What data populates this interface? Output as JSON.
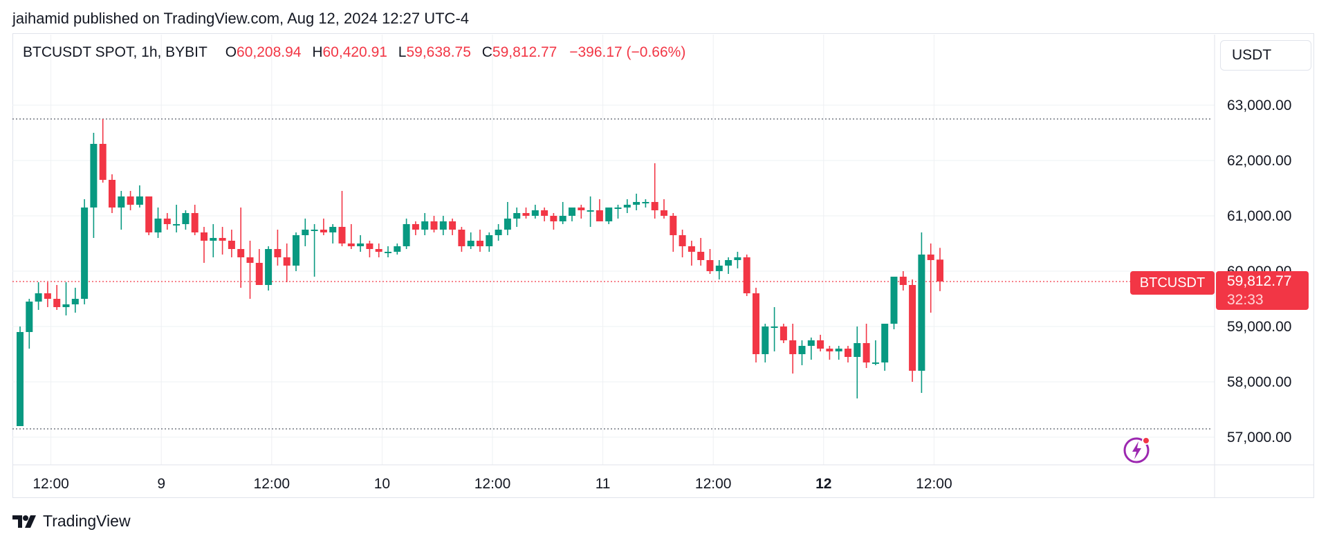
{
  "attribution": "jaihamid published on TradingView.com, Aug 12, 2024 12:27 UTC-4",
  "legend": {
    "symbol": "BTCUSDT SPOT, 1h, BYBIT",
    "open_label": "O",
    "open": "60,208.94",
    "high_label": "H",
    "high": "60,420.91",
    "low_label": "L",
    "low": "59,638.75",
    "close_label": "C",
    "close": "59,812.77",
    "change": "−396.17 (−0.66%)"
  },
  "currency_button": "USDT",
  "last_price": {
    "symbol": "BTCUSDT",
    "price": "59,812.77",
    "countdown": "32:33"
  },
  "brand": "TradingView",
  "icons": {
    "logo": "tradingview-logo-icon",
    "bolt": "lightning-icon"
  },
  "colors": {
    "up": "#089981",
    "down": "#f23645",
    "grid": "#eef0f3",
    "axis_text": "#131722"
  },
  "chart_data": {
    "type": "candlestick",
    "interval": "1h",
    "ylim": [
      56500,
      63500
    ],
    "y_ticks": [
      "57,000.00",
      "58,000.00",
      "59,000.00",
      "60,000.00",
      "61,000.00",
      "62,000.00",
      "63,000.00"
    ],
    "y_tick_values": [
      57000,
      58000,
      59000,
      60000,
      61000,
      62000,
      63000
    ],
    "x_ticks": [
      {
        "label": "12:00",
        "index": 2,
        "bold": false
      },
      {
        "label": "9",
        "index": 14,
        "bold": false
      },
      {
        "label": "12:00",
        "index": 26,
        "bold": false
      },
      {
        "label": "10",
        "index": 38,
        "bold": false
      },
      {
        "label": "12:00",
        "index": 50,
        "bold": false
      },
      {
        "label": "11",
        "index": 62,
        "bold": false
      },
      {
        "label": "12:00",
        "index": 74,
        "bold": false
      },
      {
        "label": "12",
        "index": 86,
        "bold": true
      },
      {
        "label": "12:00",
        "index": 98,
        "bold": false
      }
    ],
    "reference_lines": [
      62750,
      57150
    ],
    "last_price_value": 59812.77,
    "candles": [
      [
        57200,
        59000,
        57200,
        58900
      ],
      [
        58900,
        59500,
        58600,
        59450
      ],
      [
        59450,
        59800,
        59300,
        59600
      ],
      [
        59600,
        59800,
        59350,
        59500
      ],
      [
        59500,
        59750,
        59300,
        59350
      ],
      [
        59350,
        59800,
        59200,
        59400
      ],
      [
        59400,
        59700,
        59250,
        59500
      ],
      [
        59500,
        61300,
        59400,
        61150
      ],
      [
        61150,
        62500,
        60600,
        62300
      ],
      [
        62300,
        62750,
        61600,
        61650
      ],
      [
        61650,
        61750,
        61050,
        61150
      ],
      [
        61150,
        61450,
        60750,
        61350
      ],
      [
        61350,
        61450,
        61100,
        61200
      ],
      [
        61200,
        61550,
        61150,
        61350
      ],
      [
        61350,
        61350,
        60650,
        60700
      ],
      [
        60700,
        61150,
        60600,
        60950
      ],
      [
        60950,
        61050,
        60750,
        60850
      ],
      [
        60850,
        61200,
        60700,
        60850
      ],
      [
        60850,
        61100,
        60750,
        61050
      ],
      [
        61050,
        61200,
        60650,
        60700
      ],
      [
        60700,
        60800,
        60150,
        60550
      ],
      [
        60550,
        60850,
        60250,
        60600
      ],
      [
        60600,
        60800,
        60300,
        60550
      ],
      [
        60550,
        60750,
        60250,
        60400
      ],
      [
        60400,
        61150,
        59700,
        60250
      ],
      [
        60250,
        60550,
        59500,
        60150
      ],
      [
        60150,
        60400,
        59750,
        59750
      ],
      [
        59750,
        60450,
        59650,
        60400
      ],
      [
        60400,
        60750,
        60100,
        60250
      ],
      [
        60250,
        60500,
        59800,
        60100
      ],
      [
        60100,
        60700,
        60000,
        60650
      ],
      [
        60650,
        60950,
        60450,
        60750
      ],
      [
        60750,
        60850,
        59900,
        60750
      ],
      [
        60750,
        60950,
        60650,
        60700
      ],
      [
        60700,
        60850,
        60500,
        60800
      ],
      [
        60800,
        61450,
        60450,
        60500
      ],
      [
        60500,
        60850,
        60400,
        60450
      ],
      [
        60450,
        60650,
        60350,
        60500
      ],
      [
        60500,
        60550,
        60250,
        60400
      ],
      [
        60400,
        60500,
        60250,
        60350
      ],
      [
        60350,
        60450,
        60250,
        60350
      ],
      [
        60350,
        60500,
        60300,
        60450
      ],
      [
        60450,
        60950,
        60400,
        60850
      ],
      [
        60850,
        60900,
        60650,
        60750
      ],
      [
        60750,
        61050,
        60650,
        60900
      ],
      [
        60900,
        61000,
        60700,
        60750
      ],
      [
        60750,
        61000,
        60650,
        60900
      ],
      [
        60900,
        60950,
        60650,
        60750
      ],
      [
        60750,
        60800,
        60350,
        60450
      ],
      [
        60450,
        60700,
        60400,
        60550
      ],
      [
        60550,
        60750,
        60350,
        60450
      ],
      [
        60450,
        60700,
        60350,
        60650
      ],
      [
        60650,
        60850,
        60550,
        60750
      ],
      [
        60750,
        61250,
        60650,
        60950
      ],
      [
        60950,
        61150,
        60800,
        61050
      ],
      [
        61050,
        61150,
        60950,
        61000
      ],
      [
        61000,
        61200,
        60950,
        61100
      ],
      [
        61100,
        61150,
        60900,
        61000
      ],
      [
        61000,
        61050,
        60750,
        60900
      ],
      [
        60900,
        61250,
        60850,
        61000
      ],
      [
        61000,
        61150,
        60900,
        61150
      ],
      [
        61150,
        61200,
        60950,
        61100
      ],
      [
        61100,
        61350,
        60800,
        61100
      ],
      [
        61100,
        61300,
        60900,
        60900
      ],
      [
        60900,
        61150,
        60850,
        61150
      ],
      [
        61150,
        61200,
        60950,
        61150
      ],
      [
        61150,
        61300,
        61050,
        61200
      ],
      [
        61200,
        61400,
        61100,
        61250
      ],
      [
        61250,
        61300,
        61150,
        61250
      ],
      [
        61250,
        61950,
        60950,
        61100
      ],
      [
        61100,
        61300,
        60950,
        61000
      ],
      [
        61000,
        61050,
        60350,
        60650
      ],
      [
        60650,
        60750,
        60250,
        60450
      ],
      [
        60450,
        60550,
        60100,
        60350
      ],
      [
        60350,
        60600,
        60100,
        60200
      ],
      [
        60200,
        60400,
        59950,
        60000
      ],
      [
        60000,
        60200,
        59850,
        60100
      ],
      [
        60100,
        60250,
        59950,
        60200
      ],
      [
        60200,
        60350,
        60050,
        60250
      ],
      [
        60250,
        60300,
        59550,
        59600
      ],
      [
        59600,
        59700,
        58350,
        58500
      ],
      [
        58500,
        59050,
        58350,
        59000
      ],
      [
        59000,
        59350,
        58550,
        59000
      ],
      [
        59000,
        59050,
        58700,
        58750
      ],
      [
        58750,
        59050,
        58150,
        58500
      ],
      [
        58500,
        58750,
        58300,
        58650
      ],
      [
        58650,
        58800,
        58400,
        58750
      ],
      [
        58750,
        58850,
        58550,
        58600
      ],
      [
        58600,
        58650,
        58400,
        58550
      ],
      [
        58550,
        58650,
        58400,
        58600
      ],
      [
        58600,
        58650,
        58350,
        58450
      ],
      [
        58450,
        59000,
        57700,
        58700
      ],
      [
        58700,
        59050,
        58250,
        58350
      ],
      [
        58350,
        58750,
        58300,
        58350
      ],
      [
        58350,
        59050,
        58200,
        59050
      ],
      [
        59050,
        59900,
        58950,
        59900
      ],
      [
        59900,
        60000,
        59650,
        59750
      ],
      [
        59750,
        59850,
        58000,
        58200
      ],
      [
        58200,
        60700,
        57800,
        60300
      ],
      [
        60300,
        60500,
        59250,
        60200
      ],
      [
        60208.94,
        60420.91,
        59638.75,
        59812.77
      ]
    ]
  }
}
